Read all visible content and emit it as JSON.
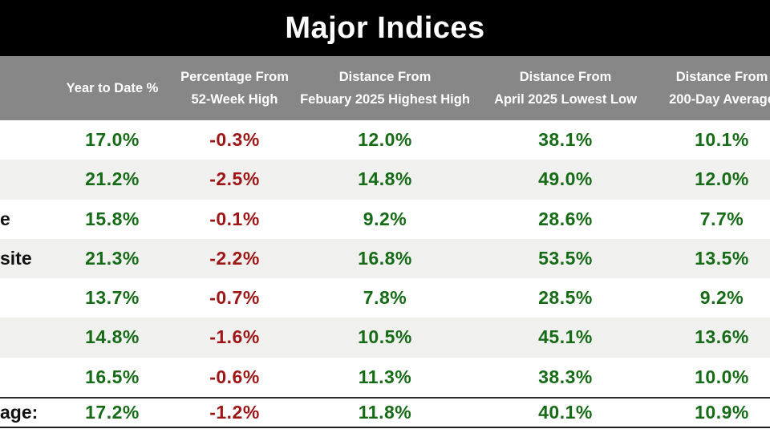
{
  "title": "Major Indices",
  "colors": {
    "title_bg": "#000000",
    "title_text": "#ffffff",
    "header_bg": "#878787",
    "header_text": "#ffffff",
    "row_bg": "#ffffff",
    "row_alt_bg": "#f0f0ee",
    "positive": "#166b16",
    "negative": "#9e1515",
    "label_text": "#111111"
  },
  "header": {
    "columns": [
      {
        "lines": []
      },
      {
        "lines": [
          "Year to Date %"
        ]
      },
      {
        "lines": [
          "Percentage From",
          "52-Week High"
        ]
      },
      {
        "lines": [
          "Distance From",
          "Febuary 2025 Highest High"
        ]
      },
      {
        "lines": [
          "Distance From",
          "April 2025 Lowest Low"
        ]
      },
      {
        "lines": [
          "Distance From",
          "200-Day Average"
        ]
      }
    ]
  },
  "rows": [
    {
      "label": "",
      "values": [
        "17.0%",
        "-0.3%",
        "12.0%",
        "38.1%",
        "10.1%"
      ]
    },
    {
      "label": "",
      "values": [
        "21.2%",
        "-2.5%",
        "14.8%",
        "49.0%",
        "12.0%"
      ]
    },
    {
      "label": "e",
      "values": [
        "15.8%",
        "-0.1%",
        "9.2%",
        "28.6%",
        "7.7%"
      ]
    },
    {
      "label": "site",
      "values": [
        "21.3%",
        "-2.2%",
        "16.8%",
        "53.5%",
        "13.5%"
      ]
    },
    {
      "label": "",
      "values": [
        "13.7%",
        "-0.7%",
        "7.8%",
        "28.5%",
        "9.2%"
      ]
    },
    {
      "label": "",
      "values": [
        "14.8%",
        "-1.6%",
        "10.5%",
        "45.1%",
        "13.6%"
      ]
    },
    {
      "label": "",
      "values": [
        "16.5%",
        "-0.6%",
        "11.3%",
        "38.3%",
        "10.0%"
      ]
    }
  ],
  "summary": {
    "label": "age:",
    "values": [
      "17.2%",
      "-1.2%",
      "11.8%",
      "40.1%",
      "10.9%"
    ]
  },
  "chart_data": {
    "type": "table",
    "title": "Major Indices",
    "columns": [
      "Year to Date %",
      "Percentage From 52-Week High",
      "Distance From Febuary 2025 Highest High",
      "Distance From April 2025 Lowest Low",
      "Distance From 200-Day Average"
    ],
    "row_labels_visible": [
      "",
      "",
      "e",
      "site",
      "",
      "",
      "",
      "age:"
    ],
    "rows_percent": [
      [
        17.0,
        -0.3,
        12.0,
        38.1,
        10.1
      ],
      [
        21.2,
        -2.5,
        14.8,
        49.0,
        12.0
      ],
      [
        15.8,
        -0.1,
        9.2,
        28.6,
        7.7
      ],
      [
        21.3,
        -2.2,
        16.8,
        53.5,
        13.5
      ],
      [
        13.7,
        -0.7,
        7.8,
        28.5,
        9.2
      ],
      [
        14.8,
        -1.6,
        10.5,
        45.1,
        13.6
      ],
      [
        16.5,
        -0.6,
        11.3,
        38.3,
        10.0
      ],
      [
        17.2,
        -1.2,
        11.8,
        40.1,
        10.9
      ]
    ],
    "units": "%",
    "value_color_rule": "column 2 negative/red, all others positive/green"
  }
}
